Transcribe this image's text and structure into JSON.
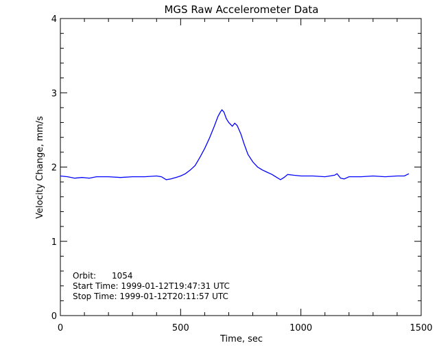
{
  "chart_data": {
    "type": "line",
    "title": "MGS Raw Accelerometer Data",
    "xlabel": "Time, sec",
    "ylabel": "Velocity Change, mm/s",
    "xlim": [
      0,
      1500
    ],
    "ylim": [
      0,
      4
    ],
    "xticks": [
      "0",
      "500",
      "1000",
      "1500"
    ],
    "yticks": [
      "0",
      "1",
      "2",
      "3",
      "4"
    ],
    "grid": false,
    "line_color": "#0000ff",
    "series": [
      {
        "points": [
          [
            0,
            1.88
          ],
          [
            30,
            1.87
          ],
          [
            60,
            1.85
          ],
          [
            90,
            1.86
          ],
          [
            120,
            1.85
          ],
          [
            150,
            1.87
          ],
          [
            200,
            1.87
          ],
          [
            250,
            1.86
          ],
          [
            300,
            1.87
          ],
          [
            350,
            1.87
          ],
          [
            400,
            1.88
          ],
          [
            420,
            1.87
          ],
          [
            440,
            1.83
          ],
          [
            460,
            1.84
          ],
          [
            480,
            1.86
          ],
          [
            500,
            1.88
          ],
          [
            520,
            1.91
          ],
          [
            540,
            1.96
          ],
          [
            560,
            2.02
          ],
          [
            580,
            2.13
          ],
          [
            600,
            2.25
          ],
          [
            620,
            2.39
          ],
          [
            640,
            2.55
          ],
          [
            655,
            2.68
          ],
          [
            665,
            2.74
          ],
          [
            672,
            2.77
          ],
          [
            680,
            2.74
          ],
          [
            690,
            2.65
          ],
          [
            700,
            2.6
          ],
          [
            715,
            2.55
          ],
          [
            725,
            2.59
          ],
          [
            735,
            2.56
          ],
          [
            750,
            2.45
          ],
          [
            765,
            2.3
          ],
          [
            780,
            2.17
          ],
          [
            800,
            2.07
          ],
          [
            820,
            2.0
          ],
          [
            840,
            1.96
          ],
          [
            860,
            1.93
          ],
          [
            880,
            1.9
          ],
          [
            900,
            1.86
          ],
          [
            915,
            1.83
          ],
          [
            930,
            1.86
          ],
          [
            945,
            1.9
          ],
          [
            970,
            1.89
          ],
          [
            1000,
            1.88
          ],
          [
            1050,
            1.88
          ],
          [
            1100,
            1.87
          ],
          [
            1140,
            1.89
          ],
          [
            1150,
            1.91
          ],
          [
            1165,
            1.85
          ],
          [
            1180,
            1.84
          ],
          [
            1200,
            1.87
          ],
          [
            1250,
            1.87
          ],
          [
            1300,
            1.88
          ],
          [
            1350,
            1.87
          ],
          [
            1400,
            1.88
          ],
          [
            1430,
            1.88
          ],
          [
            1449,
            1.91
          ]
        ]
      }
    ]
  },
  "annotations": {
    "orbit": "Orbit:      1054",
    "start": "Start Time: 1999-01-12T19:47:31 UTC",
    "stop": "Stop Time: 1999-01-12T20:11:57 UTC"
  }
}
